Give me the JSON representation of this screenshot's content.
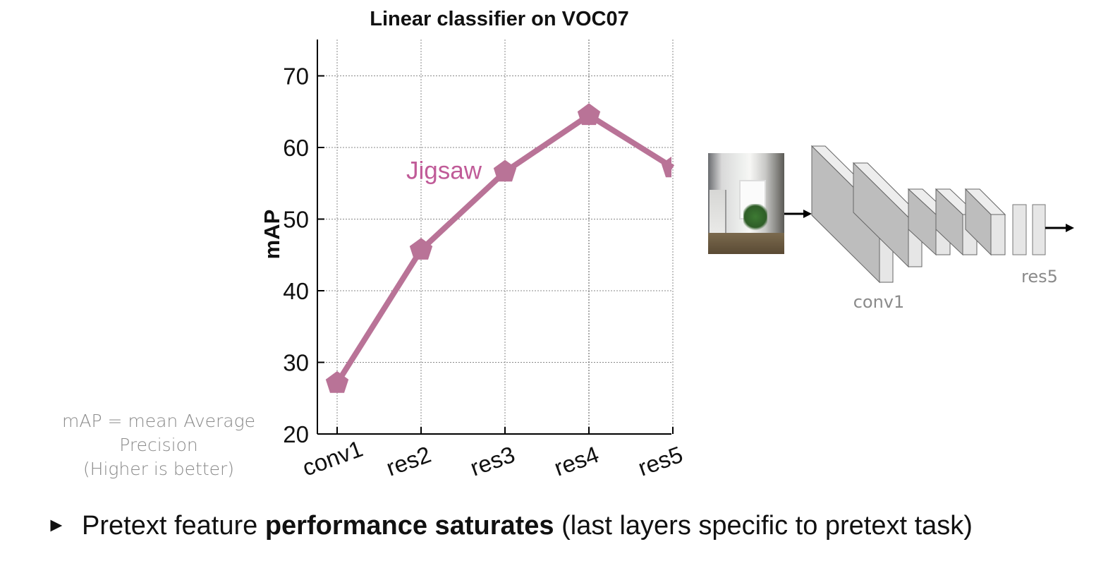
{
  "chart_data": {
    "type": "line",
    "title": "Linear classifier on VOC07",
    "xlabel": "",
    "ylabel": "mAP",
    "categories": [
      "conv1",
      "res2",
      "res3",
      "res4",
      "res5"
    ],
    "yticks": [
      "20",
      "30",
      "40",
      "50",
      "60",
      "70"
    ],
    "ylim": [
      20,
      75
    ],
    "grid": true,
    "series": [
      {
        "name": "Jigsaw",
        "values": [
          27.1,
          45.7,
          56.6,
          64.5,
          57.2
        ]
      }
    ],
    "series_color": "#b97397"
  },
  "note": {
    "line1": "mAP = mean Average",
    "line2": "Precision",
    "line3": "(Higher is better)"
  },
  "bullet": {
    "marker": "►",
    "pre": "Pretext feature ",
    "bold": "performance saturates",
    "post": " (last layers specific to pretext task)"
  },
  "diagram": {
    "label_conv1": "conv1",
    "label_res5": "res5",
    "image_icon": "kitchen-photo"
  }
}
